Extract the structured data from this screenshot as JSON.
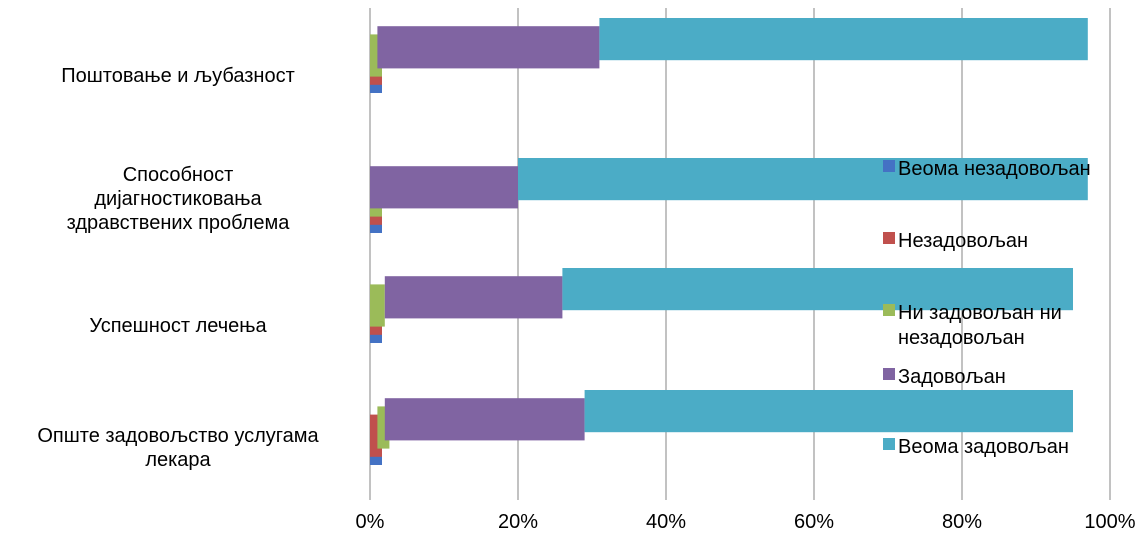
{
  "chart_data": {
    "type": "bar",
    "orientation": "horizontal",
    "stacking": "3d-offset",
    "title": "",
    "xlabel": "",
    "ylabel": "",
    "xlim": [
      0,
      100
    ],
    "x_ticks": [
      "0%",
      "20%",
      "40%",
      "60%",
      "80%",
      "100%"
    ],
    "grid": "vertical",
    "legend_position": "right-inside",
    "categories": [
      [
        "Поштовање и љубазност"
      ],
      [
        "Способност",
        "дијагностиковања",
        "здравствених проблема"
      ],
      [
        "Успешност лечења"
      ],
      [
        "Опште задовољство услугама",
        "лекара"
      ]
    ],
    "series": [
      {
        "name": "Веома незадовољан",
        "color": "#4472C4",
        "values": [
          0,
          0,
          0,
          0
        ]
      },
      {
        "name": "Незадовољан",
        "color": "#C0504D",
        "values": [
          0,
          0,
          0,
          1
        ]
      },
      {
        "name": "Ни задовољан ни незадовољан",
        "color": "#9BBB59",
        "values": [
          1,
          0,
          2,
          1
        ]
      },
      {
        "name": "Задовољан",
        "color": "#8064A2",
        "values": [
          30,
          20,
          24,
          27
        ]
      },
      {
        "name": "Веома задовољан",
        "color": "#4BACC6",
        "values": [
          66,
          77,
          69,
          66
        ]
      }
    ],
    "legend_entries": [
      [
        "Веома незадовољан"
      ],
      [
        "Незадовољан"
      ],
      [
        "Ни задовољан ни",
        "незадовољан"
      ],
      [
        "Задовољан"
      ],
      [
        "Веома задовољан"
      ]
    ]
  }
}
